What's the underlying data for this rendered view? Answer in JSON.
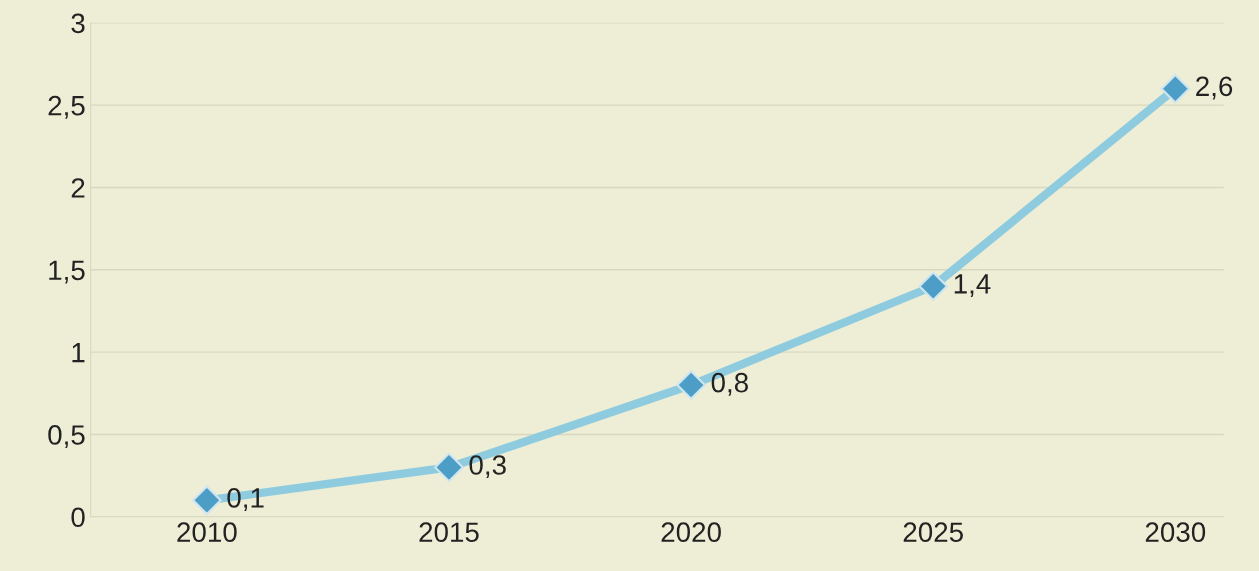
{
  "chart_data": {
    "type": "line",
    "categories": [
      "2010",
      "2015",
      "2020",
      "2025",
      "2030"
    ],
    "series": [
      {
        "color": "#8ecbdf",
        "values": [
          0.1,
          0.3,
          0.8,
          1.4,
          2.6
        ],
        "value_labels": [
          "0,1",
          "0,3",
          "0,8",
          "1,4",
          "2,6"
        ]
      }
    ],
    "ylim": [
      0,
      3
    ],
    "yticks": [
      0,
      {
        "value": 0.5,
        "label": "0,5"
      },
      1,
      {
        "value": 1.5,
        "label": "1,5"
      },
      2,
      {
        "value": 2.5,
        "label": "2,5"
      },
      3
    ],
    "grid": "y",
    "marker": "diamond",
    "line_style": "solid"
  }
}
